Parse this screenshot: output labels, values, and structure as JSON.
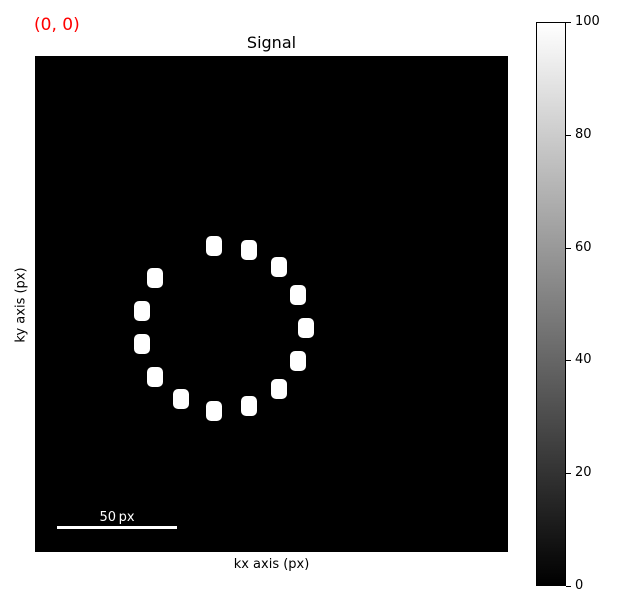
{
  "figure": {
    "index_label": "(0, 0)",
    "title": "Signal",
    "xlabel": "kx axis (px)",
    "ylabel": "ky axis (px)",
    "scalebar_label": "50 px",
    "colorbar_ticks": [
      "0",
      "20",
      "40",
      "60",
      "80",
      "100"
    ],
    "colors": {
      "index_label": "#ff0000",
      "background": "#000000",
      "spot": "#ffffff"
    },
    "colormap": "gray",
    "color_range": [
      0,
      100
    ]
  },
  "chart_data": {
    "type": "heatmap",
    "title": "Signal",
    "xlabel": "kx axis (px)",
    "ylabel": "ky axis (px)",
    "colorbar_range": [
      0,
      100
    ],
    "spot_intensity": 100,
    "background_intensity": 0,
    "spot_count": 14
  }
}
